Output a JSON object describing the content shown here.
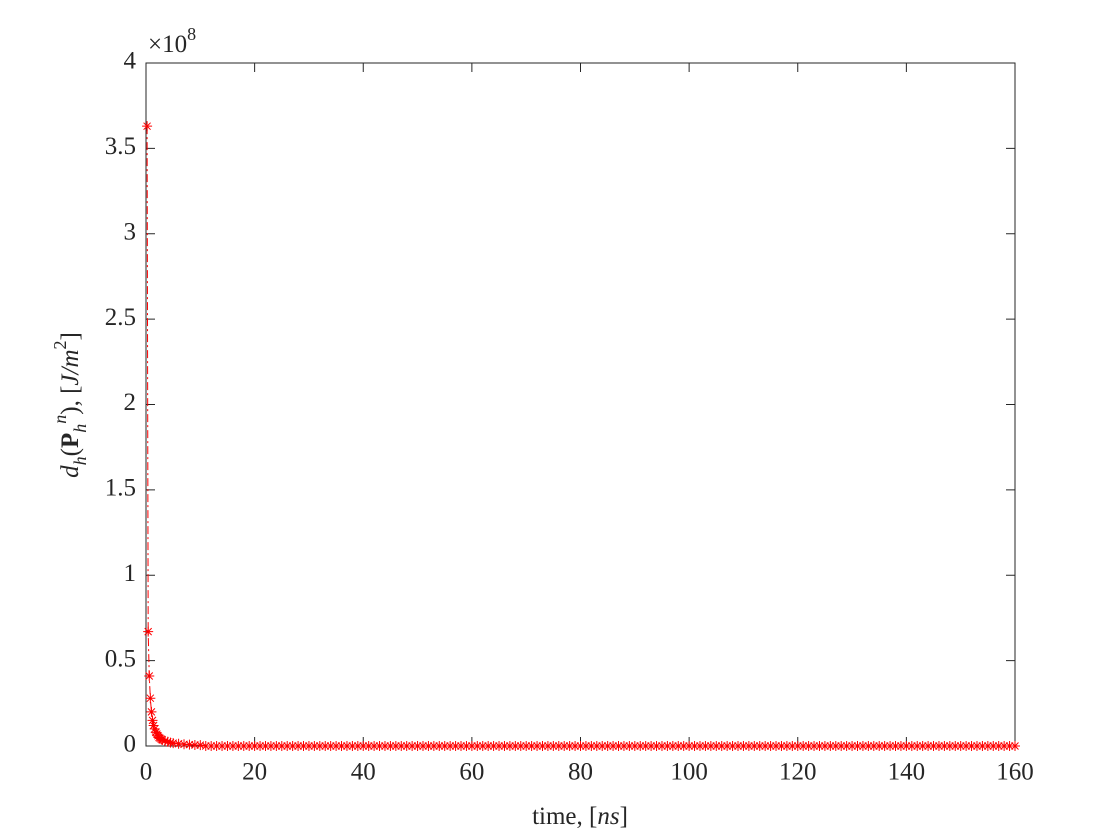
{
  "chart_data": {
    "type": "line",
    "xlabel": [
      "time, [",
      "ns",
      "]"
    ],
    "ylabel": [
      "d",
      "h",
      "(",
      "P",
      "h",
      "n",
      "), [",
      "J/m",
      "2",
      "]"
    ],
    "y_multiplier": [
      "×10",
      "8"
    ],
    "xlim": [
      0,
      160
    ],
    "xticks": [
      0,
      20,
      40,
      60,
      80,
      100,
      120,
      140,
      160
    ],
    "ylim": [
      0,
      4
    ],
    "yticks": [
      0,
      0.5,
      1,
      1.5,
      2,
      2.5,
      3,
      3.5,
      4
    ],
    "grid": false,
    "box": true,
    "series": [
      {
        "color": "#ff0000",
        "marker": "asterisk",
        "line_style": "dashdot",
        "x": [
          0.2,
          0.4,
          0.6,
          0.8,
          1.0,
          1.2,
          1.4,
          1.6,
          1.8,
          2.0,
          2.2,
          2.4,
          2.6,
          2.8,
          3.0,
          3.5,
          4,
          4.5,
          5,
          6,
          7,
          8,
          9,
          10,
          11,
          12,
          13,
          14,
          15,
          16,
          17,
          18,
          19,
          20,
          21,
          22,
          23,
          24,
          25,
          26,
          27,
          28,
          29,
          30,
          31,
          32,
          33,
          34,
          35,
          36,
          37,
          38,
          39,
          40,
          41,
          42,
          43,
          44,
          45,
          46,
          47,
          48,
          49,
          50,
          51,
          52,
          53,
          54,
          55,
          56,
          57,
          58,
          59,
          60,
          61,
          62,
          63,
          64,
          65,
          66,
          67,
          68,
          69,
          70,
          71,
          72,
          73,
          74,
          75,
          76,
          77,
          78,
          79,
          80,
          81,
          82,
          83,
          84,
          85,
          86,
          87,
          88,
          89,
          90,
          91,
          92,
          93,
          94,
          95,
          96,
          97,
          98,
          99,
          100,
          101,
          102,
          103,
          104,
          105,
          106,
          107,
          108,
          109,
          110,
          111,
          112,
          113,
          114,
          115,
          116,
          117,
          118,
          119,
          120,
          121,
          122,
          123,
          124,
          125,
          126,
          127,
          128,
          129,
          130,
          131,
          132,
          133,
          134,
          135,
          136,
          137,
          138,
          139,
          140,
          141,
          142,
          143,
          144,
          145,
          146,
          147,
          148,
          149,
          150,
          151,
          152,
          153,
          154,
          155,
          156,
          157,
          158,
          159,
          160
        ],
        "values": [
          3.63,
          0.67,
          0.41,
          0.28,
          0.2,
          0.15,
          0.12,
          0.1,
          0.08,
          0.07,
          0.06,
          0.05,
          0.045,
          0.04,
          0.035,
          0.03,
          0.025,
          0.02,
          0.017,
          0.013,
          0.01,
          0.008,
          0.006,
          0.005,
          0,
          0,
          0,
          0,
          0,
          0,
          0,
          0,
          0,
          0,
          0,
          0,
          0,
          0,
          0,
          0,
          0,
          0,
          0,
          0,
          0,
          0,
          0,
          0,
          0,
          0,
          0,
          0,
          0,
          0,
          0,
          0,
          0,
          0,
          0,
          0,
          0,
          0,
          0,
          0,
          0,
          0,
          0,
          0,
          0,
          0,
          0,
          0,
          0,
          0,
          0,
          0,
          0,
          0,
          0,
          0,
          0,
          0,
          0,
          0,
          0,
          0,
          0,
          0,
          0,
          0,
          0,
          0,
          0,
          0,
          0,
          0,
          0,
          0,
          0,
          0,
          0,
          0,
          0,
          0,
          0,
          0,
          0,
          0,
          0,
          0,
          0,
          0,
          0,
          0,
          0,
          0,
          0,
          0,
          0,
          0,
          0,
          0,
          0,
          0,
          0,
          0,
          0,
          0,
          0,
          0,
          0,
          0,
          0,
          0,
          0,
          0,
          0,
          0,
          0,
          0,
          0,
          0,
          0,
          0,
          0,
          0,
          0,
          0,
          0,
          0,
          0,
          0,
          0,
          0,
          0,
          0,
          0,
          0,
          0,
          0,
          0,
          0,
          0,
          0,
          0,
          0,
          0,
          0,
          0,
          0,
          0,
          0,
          0,
          0
        ]
      }
    ]
  }
}
